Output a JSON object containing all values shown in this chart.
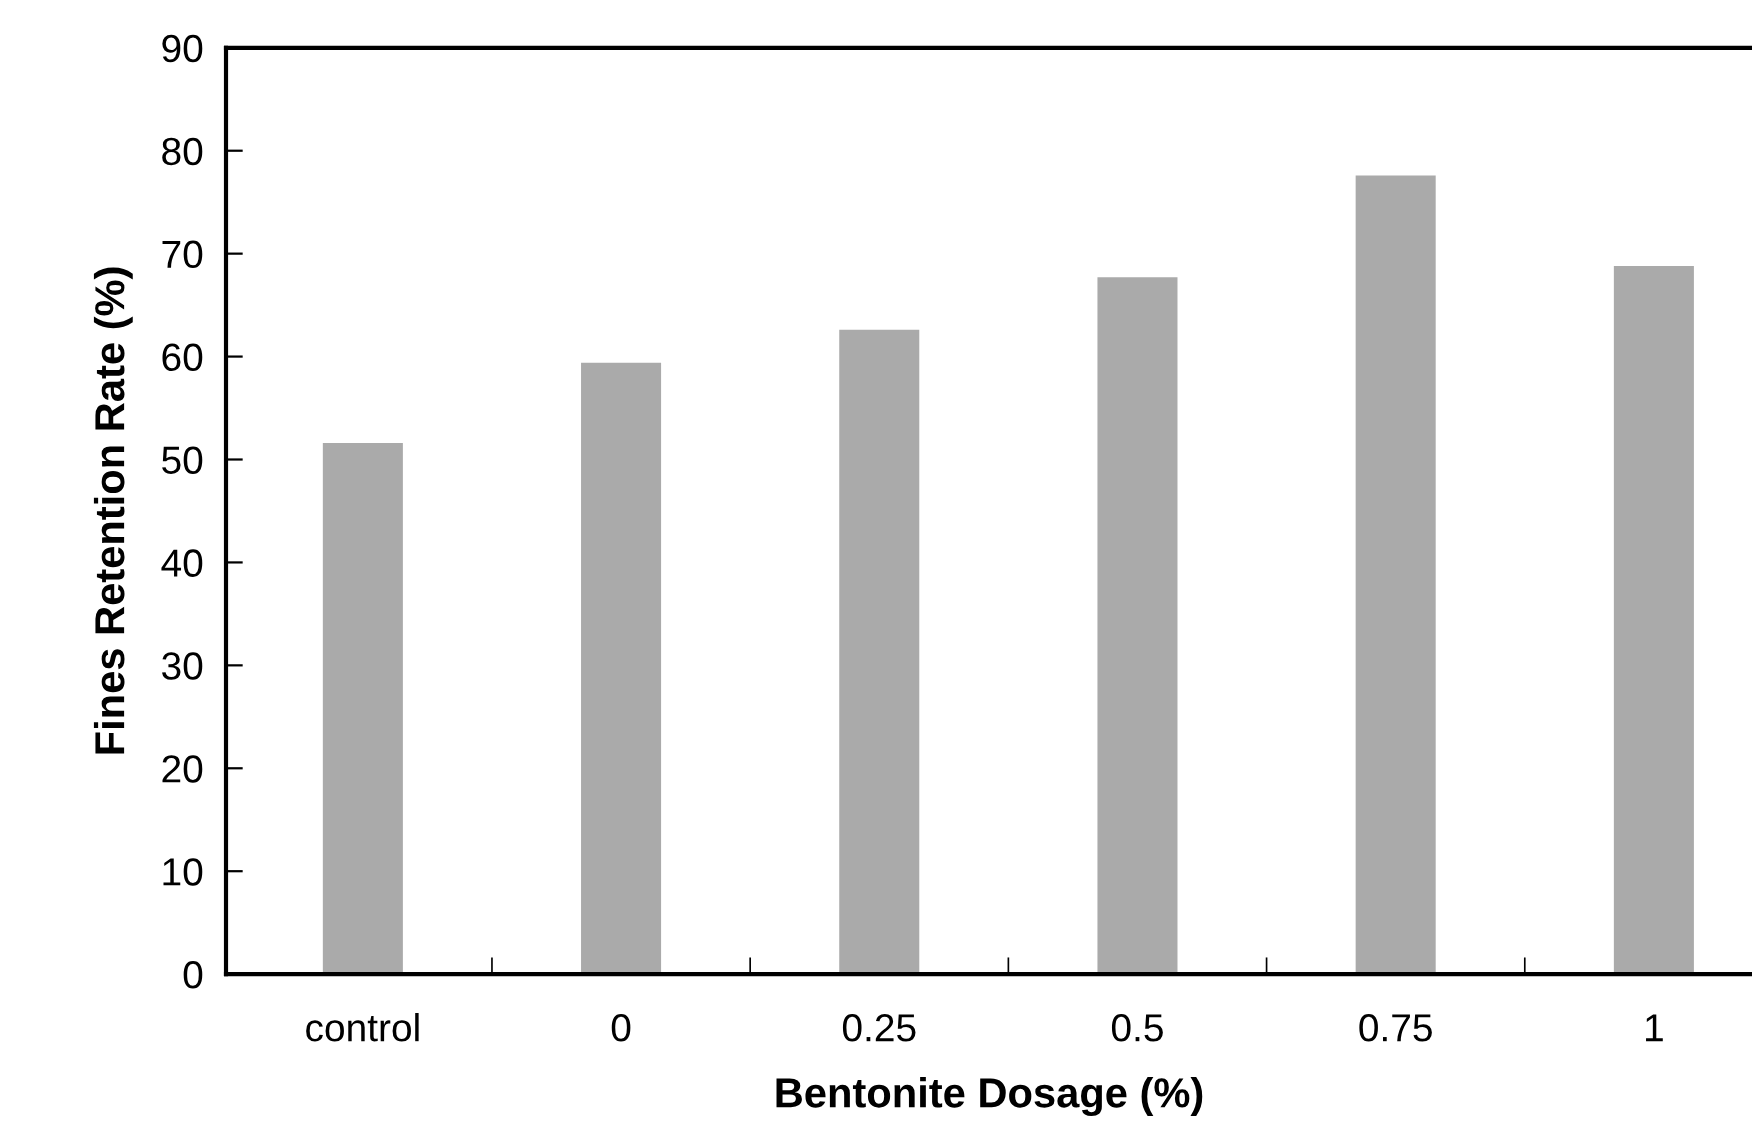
{
  "chart_data": {
    "type": "bar",
    "xlabel": "Bentonite Dosage (%)",
    "ylabel": "Fines Retention Rate (%)",
    "categories": [
      "control",
      "0",
      "0.25",
      "0.5",
      "0.75",
      "1"
    ],
    "values": [
      51.6,
      59.4,
      62.6,
      67.7,
      77.6,
      68.8
    ],
    "color": "#aaaaaa",
    "ylim": [
      0,
      90
    ],
    "yticks": [
      0,
      10,
      20,
      30,
      40,
      50,
      60,
      70,
      80,
      90
    ],
    "grid": false
  }
}
